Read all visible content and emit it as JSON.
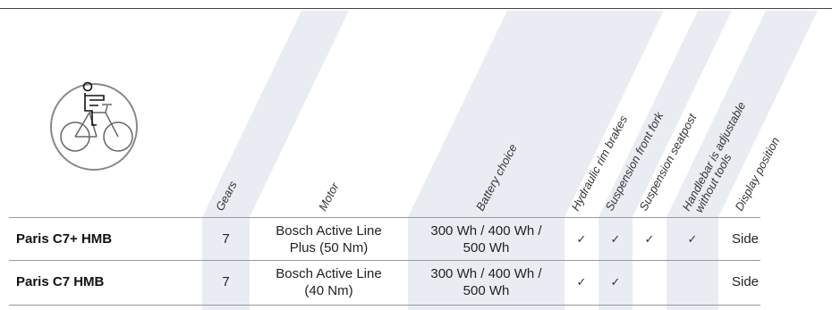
{
  "icon": {
    "name": "person-on-bike-icon"
  },
  "columns": [
    {
      "key": "gears",
      "label": "Gears",
      "shaded": true
    },
    {
      "key": "motor",
      "label": "Motor",
      "shaded": false
    },
    {
      "key": "battery",
      "label": "Battery choice",
      "shaded": true
    },
    {
      "key": "hydraulic",
      "label": "Hydraulic rim brakes",
      "shaded": false
    },
    {
      "key": "susp_fork",
      "label": "Suspension front fork",
      "shaded": true
    },
    {
      "key": "susp_seatpost",
      "label": "Suspension seatpost",
      "shaded": false
    },
    {
      "key": "handlebar",
      "label": "Handlebar is adjustable",
      "label2": "without tools",
      "shaded": true
    },
    {
      "key": "display",
      "label": "Display position",
      "shaded": false
    }
  ],
  "rows": [
    {
      "model": "Paris C7+ HMB",
      "gears": "7",
      "motor": [
        "Bosch Active Line",
        "Plus (50 Nm)"
      ],
      "battery": [
        "300 Wh / 400 Wh /",
        "500 Wh"
      ],
      "hydraulic": "✓",
      "susp_fork": "✓",
      "susp_seatpost": "✓",
      "handlebar": "✓",
      "display": "Side"
    },
    {
      "model": "Paris C7 HMB",
      "gears": "7",
      "motor": [
        "Bosch Active Line",
        "(40 Nm)"
      ],
      "battery": [
        "300 Wh / 400 Wh /",
        "500 Wh"
      ],
      "hydraulic": "✓",
      "susp_fork": "✓",
      "susp_seatpost": "",
      "handlebar": "",
      "display": "Side"
    }
  ],
  "colors": {
    "shade": "#e9edf3",
    "icon_stroke": "#666666",
    "icon_circle": "#888888"
  }
}
